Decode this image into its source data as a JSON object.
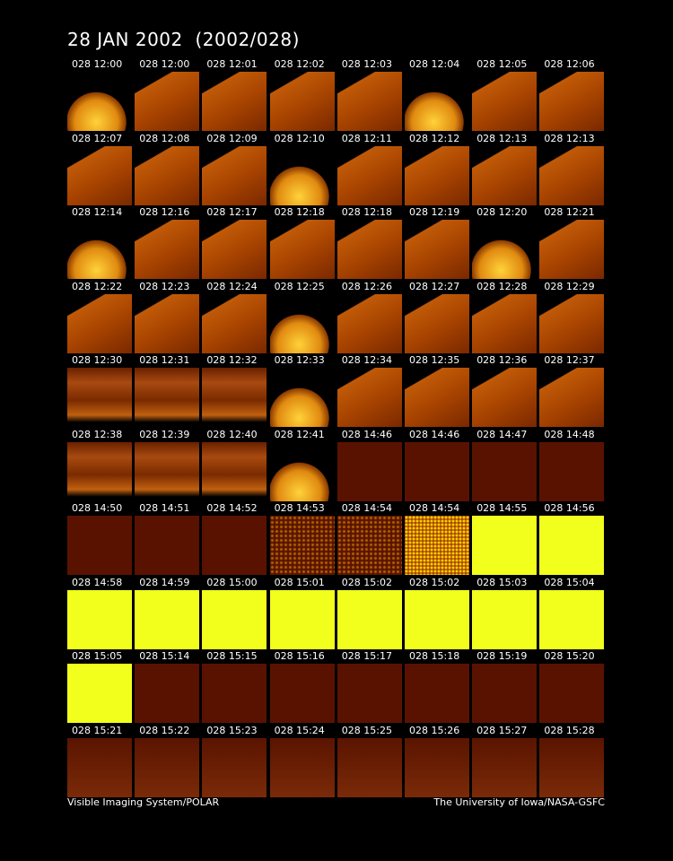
{
  "header": {
    "title": "28 JAN 2002  (2002/028)"
  },
  "grid": {
    "cells": [
      "028 12:00",
      "028 12:00",
      "028 12:01",
      "028 12:02",
      "028 12:03",
      "028 12:04",
      "028 12:05",
      "028 12:06",
      "028 12:07",
      "028 12:08",
      "028 12:09",
      "028 12:10",
      "028 12:11",
      "028 12:12",
      "028 12:13",
      "028 12:13",
      "028 12:14",
      "028 12:16",
      "028 12:17",
      "028 12:18",
      "028 12:18",
      "028 12:19",
      "028 12:20",
      "028 12:21",
      "028 12:22",
      "028 12:23",
      "028 12:24",
      "028 12:25",
      "028 12:26",
      "028 12:27",
      "028 12:28",
      "028 12:29",
      "028 12:30",
      "028 12:31",
      "028 12:32",
      "028 12:33",
      "028 12:34",
      "028 12:35",
      "028 12:36",
      "028 12:37",
      "028 12:38",
      "028 12:39",
      "028 12:40",
      "028 12:41",
      "028 14:46",
      "028 14:46",
      "028 14:47",
      "028 14:48",
      "028 14:50",
      "028 14:51",
      "028 14:52",
      "028 14:53",
      "028 14:54",
      "028 14:54",
      "028 14:55",
      "028 14:56",
      "028 14:58",
      "028 14:59",
      "028 15:00",
      "028 15:01",
      "028 15:02",
      "028 15:02",
      "028 15:03",
      "028 15:04",
      "028 15:05",
      "028 15:14",
      "028 15:15",
      "028 15:16",
      "028 15:17",
      "028 15:18",
      "028 15:19",
      "028 15:20",
      "028 15:21",
      "028 15:22",
      "028 15:23",
      "028 15:24",
      "028 15:25",
      "028 15:26",
      "028 15:27",
      "028 15:28"
    ]
  },
  "footer": {
    "left": "Visible Imaging System/POLAR",
    "right": "The University of Iowa/NASA-GSFC"
  }
}
